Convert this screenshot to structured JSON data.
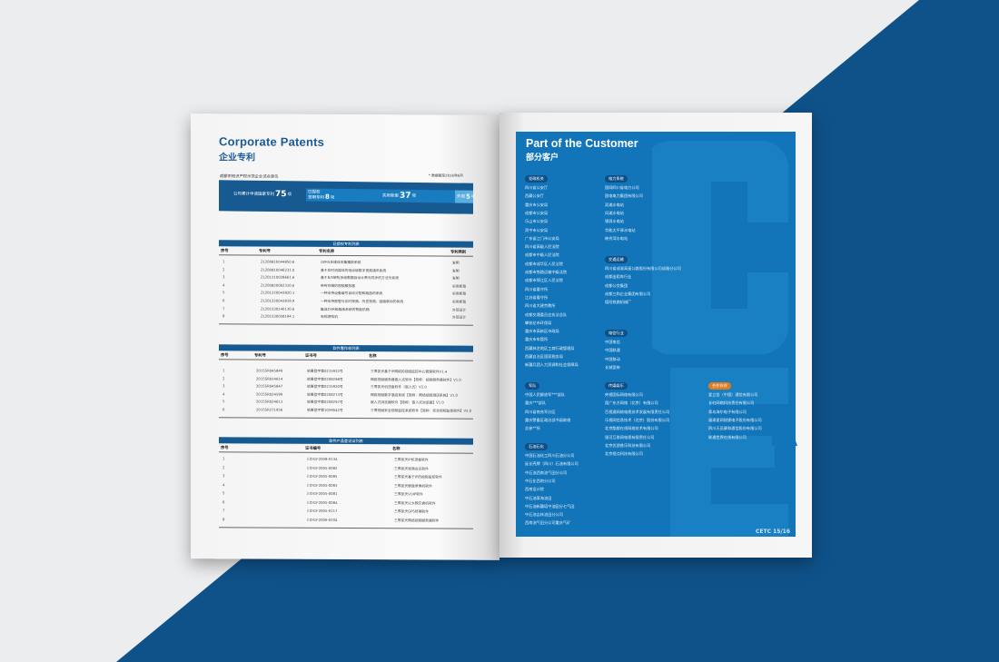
{
  "colors": {
    "background_blue": "#0f528a",
    "accent": "#1275ba",
    "dark": "#175a92",
    "partner": "#e07b1e"
  },
  "left_page": {
    "title_en": "Corporate Patents",
    "title_cn": "企业专利",
    "caption": "成都市知识产权示范企业试点单位",
    "date_note": "* 数据截至2016年6月",
    "stats": {
      "total_label": "公司累计申请国家专利",
      "total": "75",
      "unit": "项",
      "granted_label": "已授权",
      "invention_label": "发明专利",
      "invention": "8",
      "utility_label": "实用新型",
      "utility": "37",
      "design_label": "外观",
      "design": "5"
    },
    "patents": {
      "title": "已授权专利列表",
      "headers": [
        "序号",
        "专利号",
        "专利名称",
        "专利类别"
      ],
      "rows": [
        [
          "1",
          "ZL200810044850.6",
          "GPRS多媒体采集播放系统",
          "发明"
        ],
        [
          "2",
          "ZL200810046231.0",
          "基于实时流媒体的电信级数字视频通讯系统",
          "发明"
        ],
        [
          "3",
          "ZL201210028661.6",
          "基于B/S架构多级数据自动计费与同步的方法与系统",
          "发明"
        ],
        [
          "4",
          "ZL200820062310.6",
          "带有存储的视频服务器",
          "实用新型"
        ],
        [
          "5",
          "ZL201220043820.1",
          "一种支持设备编号自动分配和路由的系统",
          "实用新型"
        ],
        [
          "6",
          "ZL201220043819.9",
          "一种支持报警与实时视频、历史视频、链路联动的系统",
          "实用新型"
        ],
        [
          "7",
          "ZL201530140130.6",
          "集成DVR和路由系统的智能机箱",
          "外观设计"
        ],
        [
          "8",
          "ZL201530058194.1",
          "电视游戏机",
          "外观设计"
        ]
      ]
    },
    "software_copyrights": {
      "title": "软件著作权列表",
      "headers": [
        "序号",
        "专利号",
        "证书号",
        "名称"
      ],
      "rows": [
        [
          "1",
          "2015SR045849",
          "软著登字第0215922号",
          "三零凯天基于IP网络的视频监控中心管理软件V1.4"
        ],
        [
          "2",
          "2015SR024614",
          "软著登字第0208298号",
          "网络视频服务器嵌入式软件【简称：视频服务器软件】V1.0"
        ],
        [
          "3",
          "2015SR045847",
          "软著登字第0215920号",
          "三零凯天机顶盒软件（嵌入式）V2.0"
        ],
        [
          "4",
          "2015SR024599",
          "软著登字第0208273号",
          "网络视频数字酒店系统【简称：网络视频酒店系统】V1.0"
        ],
        [
          "5",
          "2015SR024613",
          "软著登字第0208297号",
          "嵌入式浏览器软件【简称：嵌入式浏览器】V1.0"
        ],
        [
          "6",
          "2015SR271956",
          "软著登字第1059042号",
          "三零视频安全视频监控系统软件【简称：安全视频监控软件】V2.0"
        ]
      ]
    },
    "software_products": {
      "title": "软件产品登记证列表",
      "headers": [
        "序号",
        "证书编号",
        "名称"
      ],
      "rows": [
        [
          "1",
          "川DGY-2008-0134",
          "三零凯天IP机顶盒软件"
        ],
        [
          "2",
          "川DGY-2005-0082",
          "三零凯天视频会议软件"
        ],
        [
          "3",
          "川DGY-2005-0085",
          "三零凯天基于IP的视频监控软件"
        ],
        [
          "4",
          "川DGY-2005-0083",
          "三零凯天硬盘录像机软件"
        ],
        [
          "5",
          "川DGY-2005-0081",
          "三零凯天VOIP软件"
        ],
        [
          "6",
          "川DGY-2005-0084",
          "三零凯天以太网交换机软件"
        ],
        [
          "7",
          "川DGY-2005-0117",
          "三零凯天GPS终端软件"
        ],
        [
          "8",
          "川DGY-2006-0204",
          "三零凯天网络视频服务器软件"
        ]
      ]
    }
  },
  "right_page": {
    "title_en": "Part of the Customer",
    "title_cn": "部分客户",
    "footer": "CETC 15/16",
    "categories": [
      {
        "name": "党政机关",
        "items": [
          "四川省公安厅",
          "西藏公安厅",
          "重庆市公安局",
          "成都市公安局",
          "乐山市公安局",
          "资中市公安局",
          "广东省江门市公安局",
          "四川省高级人民法院",
          "成都市中级人民法院",
          "成都市成华区人民法院",
          "成都市铁路运输中级法院",
          "成都市锦江区人民法院",
          "四川省看守所",
          "江苏省看守所",
          "四川省大建劳教所",
          "成都交通委员会执法总队",
          "攀枝花市环保局",
          "重庆市高新区市政局",
          "重庆市车管所",
          "西藏林芝地区工商行政管理局",
          "西藏自治区国家税务局",
          "新疆兵团人力资源和社会保障局"
        ]
      },
      {
        "name": "电力系统",
        "items": [
          "国网四川省电力公司",
          "国电电力集团有限公司",
          "双滩水电站",
          "风滩水电站",
          "锦屏水电站",
          "华能太平驿水电站",
          "映秀湾水电站"
        ]
      },
      {
        "name": "交通运输",
        "items": [
          "四川省成渝高速公路股份有限公司成雅分公司",
          "成都出租车行业",
          "成都公交集团",
          "成都三和企业集团有限公司",
          "德阳铁路机械厂"
        ]
      },
      {
        "name": "电信行业",
        "items": [
          "中国电信",
          "中国联通",
          "中国移动",
          "长城宽带"
        ]
      },
      {
        "name": "军队",
        "items": [
          "中国人民解放军***部队",
          "重庆***部队",
          "四川省南充军分区",
          "重庆警备区政治部书画联络",
          "总参**所"
        ]
      },
      {
        "name": "传媒娱乐",
        "items": [
          "央视国际网络有限公司",
          "国广东方网络（北京）有限公司",
          "百视通网络电视技术发展有限责任公司",
          "乐视网信息技术（北京）股份有限公司",
          "北京酷都在线网络技术有限公司",
          "银河互联网电视有限责任公司",
          "北京优朋普乐科技有限公司",
          "北京视点科技有限公司"
        ]
      },
      {
        "name": "合作伙伴",
        "items": [
          "爱立信（中国）通信有限公司",
          "长虹网络科技责任有限公司",
          "青岛海尔电子有限公司",
          "福建星网锐捷电子股份有限公司",
          "四川天邑康和通信股份有限公司",
          "联通世界在线有限公司"
        ]
      },
      {
        "name": "石油石化",
        "items": [
          "中国石油化工四川石油分公司",
          "延长壳牌（四川）石油有限公司",
          "中石油西南油气田分公司",
          "中石化西南分公司",
          "西南设计院",
          "中石油青海油田",
          "中石油新疆塔中油田分七气田",
          "中石油吉林油田分公司",
          "西南油气田分公司重庆气矿"
        ]
      }
    ]
  }
}
